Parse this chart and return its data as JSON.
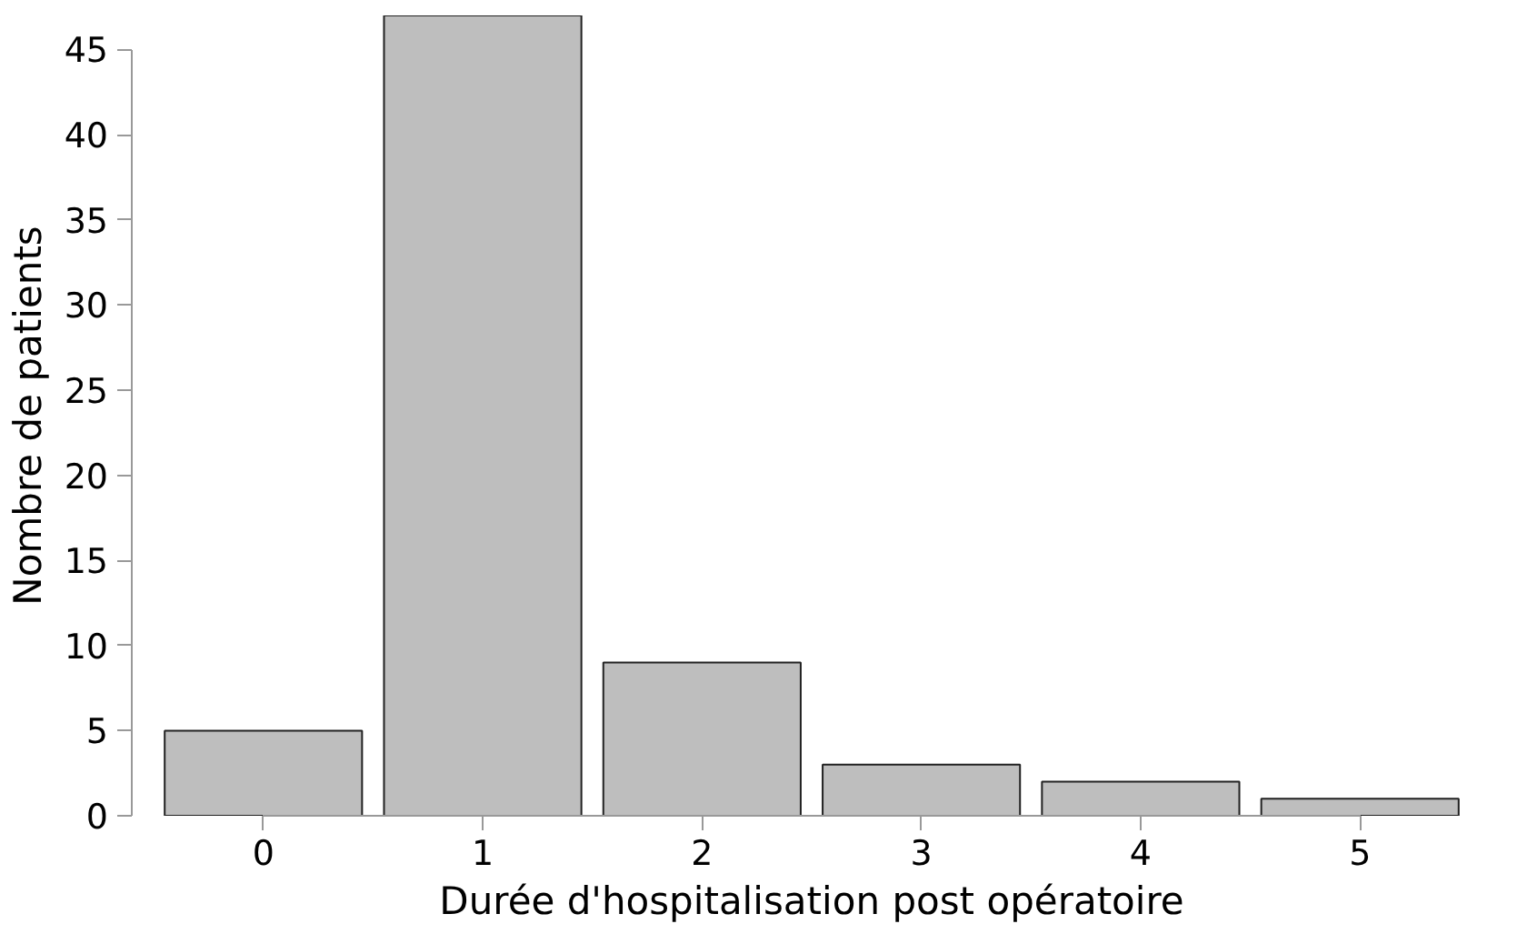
{
  "chart_data": {
    "type": "bar",
    "xlabel": "Durée d'hospitalisation post opératoire",
    "ylabel": "Nombre de patients",
    "categories": [
      "0",
      "1",
      "2",
      "3",
      "4",
      "5"
    ],
    "values": [
      5,
      47,
      9,
      3,
      2,
      1
    ],
    "color": "#bebebe",
    "ylim": [
      0,
      47
    ],
    "yticks": [
      0,
      5,
      10,
      15,
      20,
      25,
      30,
      35,
      40,
      45
    ],
    "grid": false
  }
}
